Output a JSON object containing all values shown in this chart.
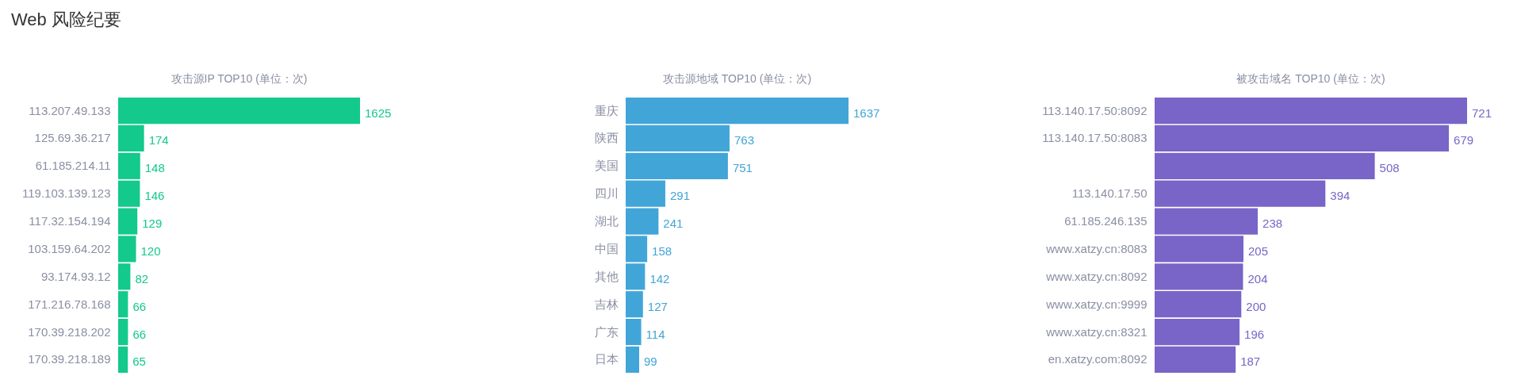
{
  "chart_data": [
    {
      "type": "other",
      "title": "Web 风险纪要"
    },
    {
      "type": "bar",
      "orientation": "horizontal",
      "title": "攻击源IP TOP10 (单位：次)",
      "categories": [
        "113.207.49.133",
        "125.69.36.217",
        "61.185.214.11",
        "119.103.139.123",
        "117.32.154.194",
        "103.159.64.202",
        "93.174.93.12",
        "171.216.78.168",
        "170.39.218.202",
        "170.39.218.189"
      ],
      "values": [
        1625,
        174,
        148,
        146,
        129,
        120,
        82,
        66,
        66,
        65
      ],
      "color": "#13c98b",
      "data_labels": true
    },
    {
      "type": "bar",
      "orientation": "horizontal",
      "title": "攻击源地域 TOP10 (单位：次)",
      "categories": [
        "重庆",
        "陕西",
        "美国",
        "四川",
        "湖北",
        "中国",
        "其他",
        "吉林",
        "广东",
        "日本"
      ],
      "values": [
        1637,
        763,
        751,
        291,
        241,
        158,
        142,
        127,
        114,
        99
      ],
      "color": "#42a5d8",
      "data_labels": true
    },
    {
      "type": "bar",
      "orientation": "horizontal",
      "title": "被攻击域名 TOP10 (单位：次)",
      "categories": [
        "113.140.17.50:8092",
        "113.140.17.50:8083",
        null,
        "113.140.17.50",
        "61.185.246.135",
        "www.xatzy.cn:8083",
        "www.xatzy.cn:8092",
        "www.xatzy.cn:9999",
        "www.xatzy.cn:8321",
        "en.xatzy.com:8092"
      ],
      "values": [
        721,
        679,
        508,
        394,
        238,
        205,
        204,
        200,
        196,
        187
      ],
      "color": "#7865c7",
      "data_labels": true
    }
  ]
}
